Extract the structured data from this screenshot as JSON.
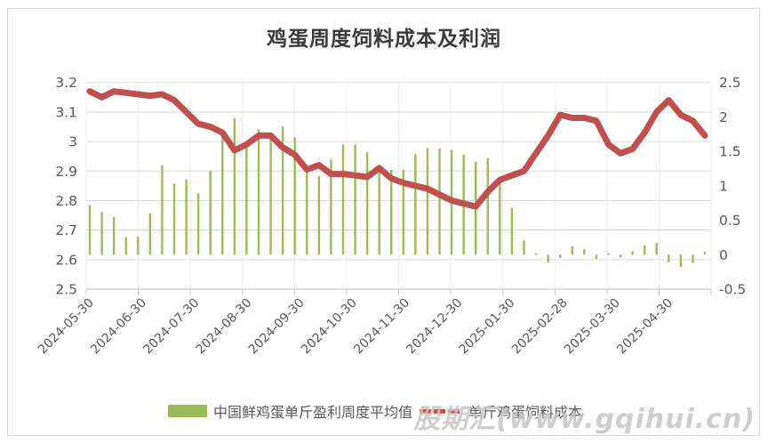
{
  "title": "鸡蛋周度饲料成本及利润",
  "watermark": "股期汇(www.gqihui.cn)",
  "legend": [
    {
      "label": "中国鲜鸡蛋单斤盈利周度平均值",
      "color": "#9bbb59",
      "marker": "bar"
    },
    {
      "label": "单斤鸡蛋饲料成本",
      "color": "#c0504d",
      "marker": "line"
    }
  ],
  "colors": {
    "bar": "#9bbb59",
    "line": "#c0504d",
    "grid": "#d9d9d9",
    "vgrid": "#ececec",
    "axis": "#c9c9c9",
    "axis_text": "#595959",
    "title_text": "#3b3b3b",
    "frame_border": "#d8d8d8",
    "watermark_text": "#c6c6c6"
  },
  "chart_data": {
    "type": "bar+line combo, weekly data",
    "title": "鸡蛋周度饲料成本及利润",
    "x_labels": [
      "2024-05-30",
      "2024-06-30",
      "2024-07-30",
      "2024-08-30",
      "2024-09-30",
      "2024-10-30",
      "2024-11-30",
      "2024-12-30",
      "2025-01-30",
      "2025-02-28",
      "2025-03-30",
      "2025-04-30"
    ],
    "left_axis": {
      "min": 2.5,
      "max": 3.2,
      "ticks": [
        "3.2",
        "3.1",
        "3",
        "2.9",
        "2.8",
        "2.7",
        "2.6",
        "2.5"
      ]
    },
    "right_axis": {
      "min": -0.5,
      "max": 2.5,
      "ticks": [
        "2.5",
        "2",
        "1.5",
        "1",
        "0.5",
        "0",
        "-0.5"
      ]
    },
    "grid": true,
    "legend_position": "bottom",
    "series": [
      {
        "name": "中国鲜鸡蛋单斤盈利周度平均值",
        "type": "bar",
        "axis": "right",
        "color": "#9bbb59",
        "values": [
          0.72,
          0.62,
          0.55,
          0.25,
          0.26,
          0.6,
          1.3,
          1.03,
          1.09,
          0.89,
          1.22,
          1.72,
          1.98,
          1.65,
          1.82,
          1.73,
          1.86,
          1.7,
          1.22,
          1.14,
          1.38,
          1.6,
          1.6,
          1.49,
          1.3,
          1.23,
          1.23,
          1.46,
          1.55,
          1.54,
          1.52,
          1.45,
          1.35,
          1.4,
          1.04,
          0.68,
          0.21,
          0.02,
          -0.11,
          -0.05,
          0.12,
          0.08,
          -0.06,
          0.02,
          -0.04,
          0.05,
          0.14,
          0.17,
          -0.11,
          -0.18,
          -0.12,
          0.04
        ]
      },
      {
        "name": "单斤鸡蛋饲料成本",
        "type": "line",
        "axis": "left",
        "color": "#c0504d",
        "values": [
          3.17,
          3.15,
          3.17,
          3.165,
          3.16,
          3.155,
          3.16,
          3.14,
          3.1,
          3.06,
          3.05,
          3.03,
          2.97,
          2.99,
          3.02,
          3.02,
          2.98,
          2.955,
          2.905,
          2.92,
          2.89,
          2.89,
          2.885,
          2.88,
          2.91,
          2.875,
          2.86,
          2.85,
          2.84,
          2.82,
          2.8,
          2.79,
          2.78,
          2.83,
          2.87,
          2.885,
          2.9,
          2.96,
          3.02,
          3.09,
          3.08,
          3.08,
          3.07,
          2.99,
          2.96,
          2.975,
          3.03,
          3.1,
          3.14,
          3.09,
          3.07,
          3.02
        ]
      }
    ]
  }
}
